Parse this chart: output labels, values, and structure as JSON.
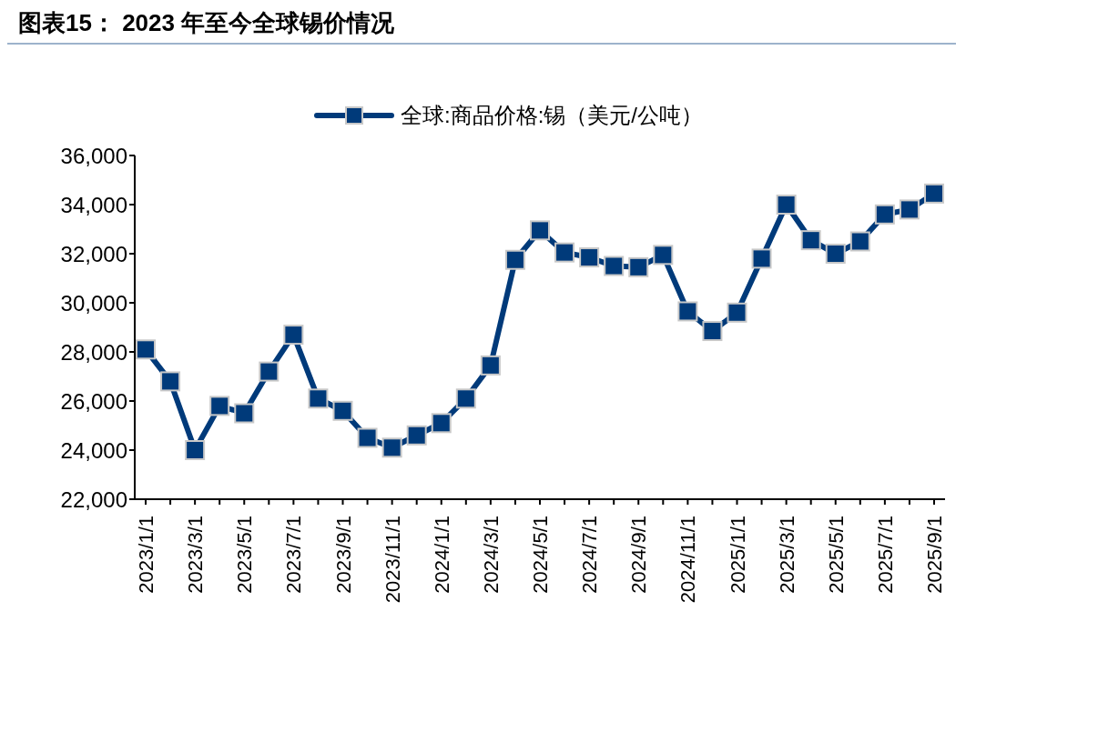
{
  "chart_data": {
    "type": "line",
    "title": "图表15：  2023 年至今全球锡价情况",
    "categories": [
      "2023/1/1",
      null,
      "2023/3/1",
      null,
      "2023/5/1",
      null,
      "2023/7/1",
      null,
      "2023/9/1",
      null,
      "2023/11/1",
      null,
      "2024/1/1",
      null,
      "2024/3/1",
      null,
      "2024/5/1",
      null,
      "2024/7/1",
      null,
      "2024/9/1",
      null,
      "2024/11/1",
      null,
      "2025/1/1",
      null,
      "2025/3/1",
      null,
      "2025/5/1",
      null,
      "2025/7/1",
      null,
      "2025/9/1"
    ],
    "series": [
      {
        "name": "全球:商品价格:锡（美元/公吨）",
        "color": "#003a7a",
        "values": [
          28100,
          26800,
          24000,
          25800,
          25500,
          27200,
          28700,
          26100,
          25600,
          24500,
          24100,
          24600,
          25100,
          26100,
          27450,
          31750,
          32950,
          32050,
          31850,
          31500,
          31450,
          31950,
          29650,
          28850,
          29600,
          31800,
          34000,
          32550,
          32000,
          32500,
          33600,
          33800,
          34450
        ]
      }
    ],
    "ylim": [
      22000,
      36000
    ],
    "yticks": [
      {
        "value": 22000,
        "label": "22,000"
      },
      {
        "value": 24000,
        "label": "24,000"
      },
      {
        "value": 26000,
        "label": "26,000"
      },
      {
        "value": 28000,
        "label": "28,000"
      },
      {
        "value": 30000,
        "label": "30,000"
      },
      {
        "value": 32000,
        "label": "32,000"
      },
      {
        "value": 34000,
        "label": "34,000"
      },
      {
        "value": 36000,
        "label": "36,000"
      }
    ],
    "marker": "square",
    "legend": "top",
    "grid": false
  }
}
